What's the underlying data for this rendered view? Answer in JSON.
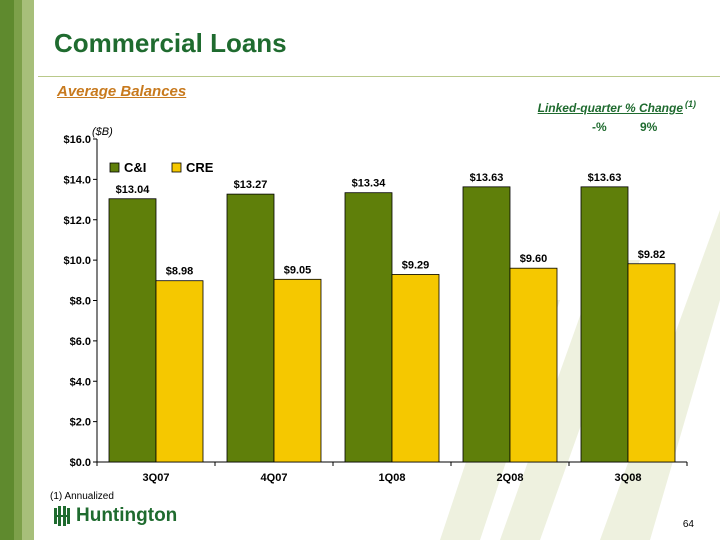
{
  "slide": {
    "title": "Commercial Loans",
    "subtitle": "Average Balances",
    "units": "($B)",
    "footnote": "(1)   Annualized",
    "logo_text": "Huntington",
    "page_number": "64"
  },
  "linked_quarter": {
    "title": "Linked-quarter % Change",
    "footnote_marker": "(1)",
    "cni_change": "-%",
    "cre_change": "9%"
  },
  "colors": {
    "cni": "#5f7f0a",
    "cre": "#f5c800",
    "brand_green": "#1f6b2f"
  },
  "chart_data": {
    "type": "bar",
    "categories": [
      "3Q07",
      "4Q07",
      "1Q08",
      "2Q08",
      "3Q08"
    ],
    "series": [
      {
        "name": "C&I",
        "values": [
          13.04,
          13.27,
          13.34,
          13.63,
          13.63
        ],
        "labels": [
          "$13.04",
          "$13.27",
          "$13.34",
          "$13.63",
          "$13.63"
        ]
      },
      {
        "name": "CRE",
        "values": [
          8.98,
          9.05,
          9.29,
          9.6,
          9.82
        ],
        "labels": [
          "$8.98",
          "$9.05",
          "$9.29",
          "$9.60",
          "$9.82"
        ]
      }
    ],
    "ylim": [
      0,
      16
    ],
    "yticks": [
      0,
      2,
      4,
      6,
      8,
      10,
      12,
      14,
      16
    ],
    "ytick_labels": [
      "$0.0",
      "$2.0",
      "$4.0",
      "$6.0",
      "$8.0",
      "$10.0",
      "$12.0",
      "$14.0",
      "$16.0"
    ],
    "legend_position": "top-left",
    "grid": false
  }
}
